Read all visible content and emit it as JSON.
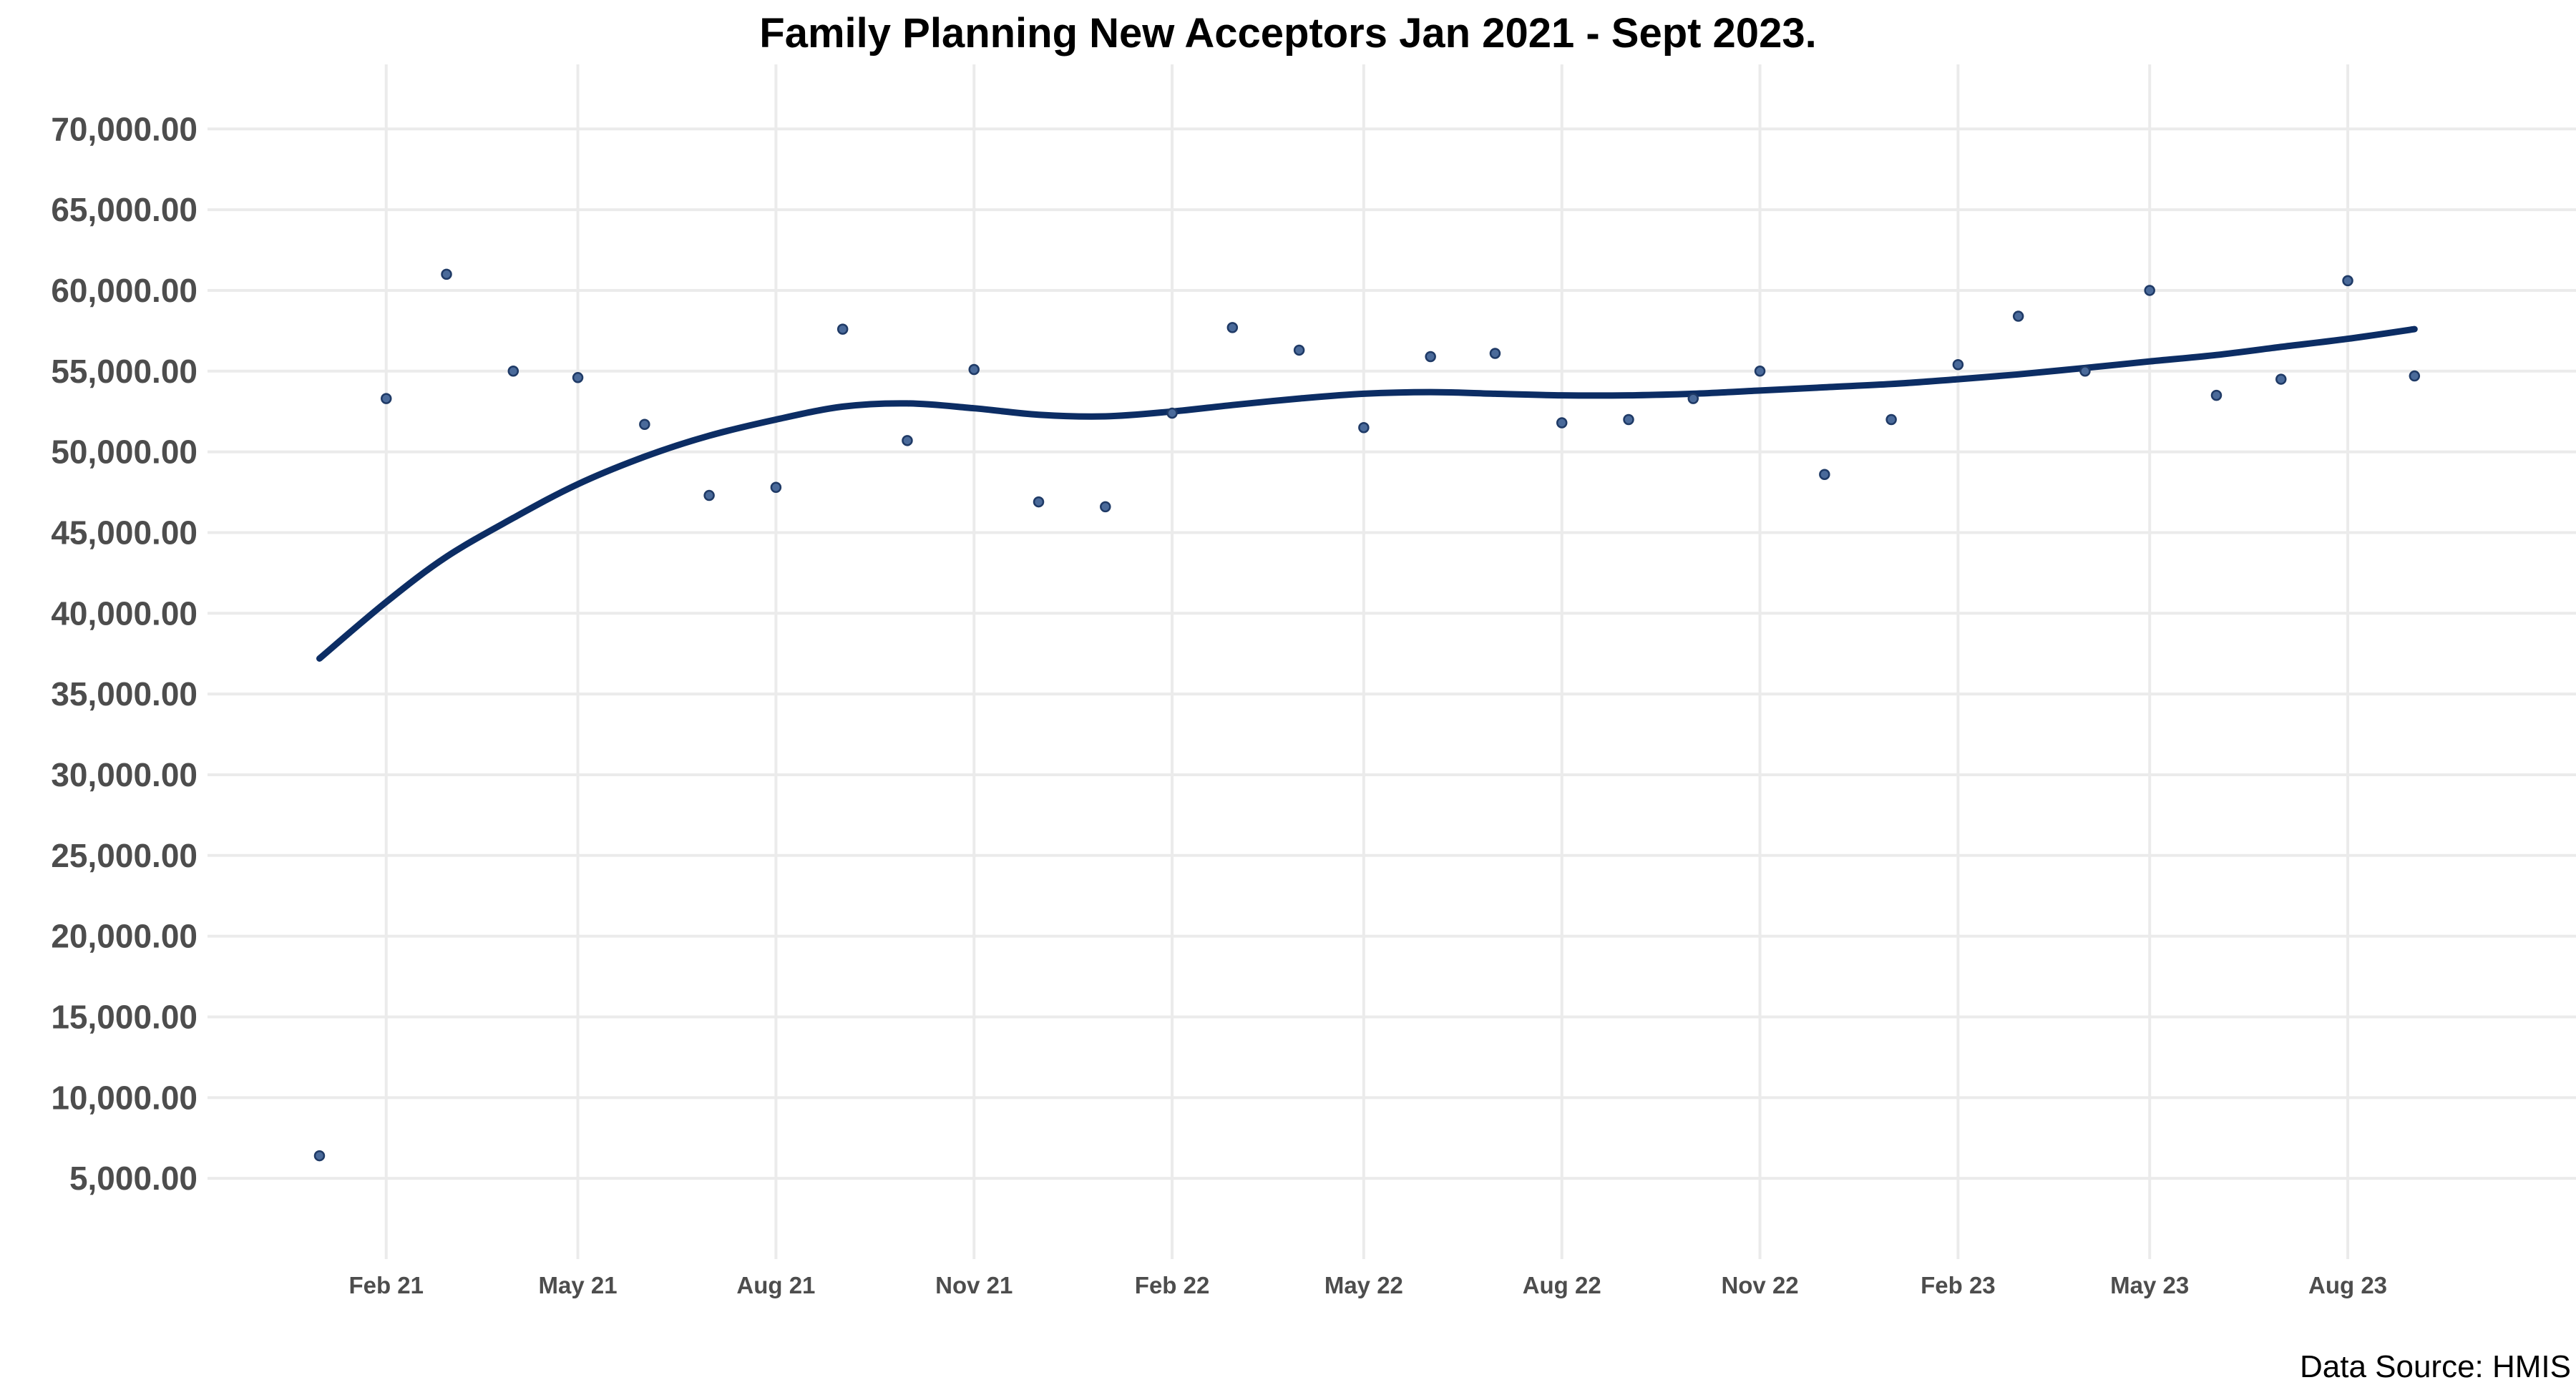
{
  "chart_data": {
    "type": "scatter",
    "title": "Family Planning New Acceptors Jan 2021 - Sept 2023.",
    "xlabel": "",
    "ylabel": "",
    "source_note": "Data Source: HMIS",
    "x_axis": {
      "type": "date",
      "range": [
        "2020-11-10",
        "2023-11-15"
      ],
      "ticks": [
        {
          "date": "2021-02-01",
          "label": "Feb 21"
        },
        {
          "date": "2021-05-01",
          "label": "May 21"
        },
        {
          "date": "2021-08-01",
          "label": "Aug 21"
        },
        {
          "date": "2021-11-01",
          "label": "Nov 21"
        },
        {
          "date": "2022-02-01",
          "label": "Feb 22"
        },
        {
          "date": "2022-05-01",
          "label": "May 22"
        },
        {
          "date": "2022-08-01",
          "label": "Aug 22"
        },
        {
          "date": "2022-11-01",
          "label": "Nov 22"
        },
        {
          "date": "2023-02-01",
          "label": "Feb 23"
        },
        {
          "date": "2023-05-01",
          "label": "May 23"
        },
        {
          "date": "2023-08-01",
          "label": "Aug 23"
        }
      ]
    },
    "y_axis": {
      "range": [
        0,
        74000
      ],
      "ticks": [
        {
          "value": 5000,
          "label": "5,000.00"
        },
        {
          "value": 10000,
          "label": "10,000.00"
        },
        {
          "value": 15000,
          "label": "15,000.00"
        },
        {
          "value": 20000,
          "label": "20,000.00"
        },
        {
          "value": 25000,
          "label": "25,000.00"
        },
        {
          "value": 30000,
          "label": "30,000.00"
        },
        {
          "value": 35000,
          "label": "35,000.00"
        },
        {
          "value": 40000,
          "label": "40,000.00"
        },
        {
          "value": 45000,
          "label": "45,000.00"
        },
        {
          "value": 50000,
          "label": "50,000.00"
        },
        {
          "value": 55000,
          "label": "55,000.00"
        },
        {
          "value": 60000,
          "label": "60,000.00"
        },
        {
          "value": 65000,
          "label": "65,000.00"
        },
        {
          "value": 70000,
          "label": "70,000.00"
        }
      ]
    },
    "grid": true,
    "series": [
      {
        "kind": "points",
        "color": "#4a6a9a",
        "points": [
          {
            "x": "2021-01-01",
            "y": 6400
          },
          {
            "x": "2021-02-01",
            "y": 53300
          },
          {
            "x": "2021-03-01",
            "y": 61000
          },
          {
            "x": "2021-04-01",
            "y": 55000
          },
          {
            "x": "2021-05-01",
            "y": 54600
          },
          {
            "x": "2021-06-01",
            "y": 51700
          },
          {
            "x": "2021-07-01",
            "y": 47300
          },
          {
            "x": "2021-08-01",
            "y": 47800
          },
          {
            "x": "2021-09-01",
            "y": 57600
          },
          {
            "x": "2021-10-01",
            "y": 50700
          },
          {
            "x": "2021-11-01",
            "y": 55100
          },
          {
            "x": "2021-12-01",
            "y": 46900
          },
          {
            "x": "2022-01-01",
            "y": 46600
          },
          {
            "x": "2022-02-01",
            "y": 52400
          },
          {
            "x": "2022-03-01",
            "y": 57700
          },
          {
            "x": "2022-04-01",
            "y": 56300
          },
          {
            "x": "2022-05-01",
            "y": 51500
          },
          {
            "x": "2022-06-01",
            "y": 55900
          },
          {
            "x": "2022-07-01",
            "y": 56100
          },
          {
            "x": "2022-08-01",
            "y": 51800
          },
          {
            "x": "2022-09-01",
            "y": 52000
          },
          {
            "x": "2022-10-01",
            "y": 53300
          },
          {
            "x": "2022-11-01",
            "y": 55000
          },
          {
            "x": "2022-12-01",
            "y": 48600
          },
          {
            "x": "2023-01-01",
            "y": 52000
          },
          {
            "x": "2023-02-01",
            "y": 55400
          },
          {
            "x": "2023-03-01",
            "y": 58400
          },
          {
            "x": "2023-04-01",
            "y": 55000
          },
          {
            "x": "2023-05-01",
            "y": 60000
          },
          {
            "x": "2023-06-01",
            "y": 53500
          },
          {
            "x": "2023-07-01",
            "y": 54500
          },
          {
            "x": "2023-08-01",
            "y": 60600
          },
          {
            "x": "2023-09-01",
            "y": 54700
          }
        ]
      },
      {
        "kind": "smooth_trend",
        "color": "#0c2d64",
        "points": [
          {
            "x": "2021-01-01",
            "y": 37200
          },
          {
            "x": "2021-02-01",
            "y": 40700
          },
          {
            "x": "2021-03-01",
            "y": 43500
          },
          {
            "x": "2021-04-01",
            "y": 45900
          },
          {
            "x": "2021-05-01",
            "y": 48000
          },
          {
            "x": "2021-06-01",
            "y": 49700
          },
          {
            "x": "2021-07-01",
            "y": 51000
          },
          {
            "x": "2021-08-01",
            "y": 52000
          },
          {
            "x": "2021-09-01",
            "y": 52800
          },
          {
            "x": "2021-10-01",
            "y": 53000
          },
          {
            "x": "2021-11-01",
            "y": 52700
          },
          {
            "x": "2021-12-01",
            "y": 52300
          },
          {
            "x": "2022-01-01",
            "y": 52200
          },
          {
            "x": "2022-02-01",
            "y": 52500
          },
          {
            "x": "2022-03-01",
            "y": 52900
          },
          {
            "x": "2022-04-01",
            "y": 53300
          },
          {
            "x": "2022-05-01",
            "y": 53600
          },
          {
            "x": "2022-06-01",
            "y": 53700
          },
          {
            "x": "2022-07-01",
            "y": 53600
          },
          {
            "x": "2022-08-01",
            "y": 53500
          },
          {
            "x": "2022-09-01",
            "y": 53500
          },
          {
            "x": "2022-10-01",
            "y": 53600
          },
          {
            "x": "2022-11-01",
            "y": 53800
          },
          {
            "x": "2022-12-01",
            "y": 54000
          },
          {
            "x": "2023-01-01",
            "y": 54200
          },
          {
            "x": "2023-02-01",
            "y": 54500
          },
          {
            "x": "2023-03-01",
            "y": 54800
          },
          {
            "x": "2023-04-01",
            "y": 55200
          },
          {
            "x": "2023-05-01",
            "y": 55600
          },
          {
            "x": "2023-06-01",
            "y": 56000
          },
          {
            "x": "2023-07-01",
            "y": 56500
          },
          {
            "x": "2023-08-01",
            "y": 57000
          },
          {
            "x": "2023-09-01",
            "y": 57600
          }
        ]
      }
    ]
  }
}
